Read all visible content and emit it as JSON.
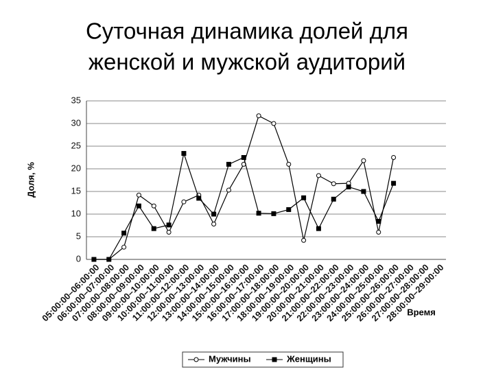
{
  "chart_data": {
    "type": "line",
    "title": [
      "Суточная динамика долей для",
      "женской и мужской аудиторий"
    ],
    "y_label": "Доля, %",
    "x_label": "Время",
    "categories": [
      "05:00:00–06:00:00",
      "06:00:00–07:00:00",
      "07:00:00–08:00:00",
      "08:00:00–09:00:00",
      "09:00:00–10:00:00",
      "10:00:00–11:00:00",
      "11:00:00–12:00:00",
      "12:00:00–13:00:00",
      "13:00:00–14:00:00",
      "14:00:00–15:00:00",
      "15:00:00–16:00:00",
      "16:00:00–17:00:00",
      "17:00:00–18:00:00",
      "18:00:00–19:00:00",
      "19:00:00–20:00:00",
      "20:00:00–21:00:00",
      "21:00:00–22:00:00",
      "22:00:00–23:00:00",
      "23:00:00–24:00:00",
      "24:00:00–25:00:00",
      "25:00:00–26:00:00",
      "26:00:00–27:00:00",
      "27:00:00–28:00:00",
      "28:00:00–29:00:00"
    ],
    "series": [
      {
        "name": "Мужчины",
        "color": "#000000",
        "marker": "circle",
        "values": [
          0,
          0,
          2.7,
          14.2,
          11.8,
          6,
          12.7,
          14.2,
          7.8,
          15.3,
          21,
          31.7,
          30,
          21,
          4.2,
          18.5,
          16.7,
          16.8,
          21.8,
          6,
          22.5,
          null,
          null,
          null
        ]
      },
      {
        "name": "Женщины",
        "color": "#000000",
        "marker": "square",
        "values": [
          0,
          0,
          5.8,
          11.8,
          6.8,
          7.6,
          23.4,
          13.5,
          10,
          21,
          22.5,
          10.2,
          10.1,
          11,
          13.6,
          6.8,
          13.3,
          16,
          15,
          8.4,
          16.8,
          null,
          null,
          null
        ]
      }
    ],
    "ylim": [
      0,
      35
    ],
    "yticks": [
      0,
      5,
      10,
      15,
      20,
      25,
      30,
      35
    ],
    "grid": true,
    "legend": "bottom"
  }
}
